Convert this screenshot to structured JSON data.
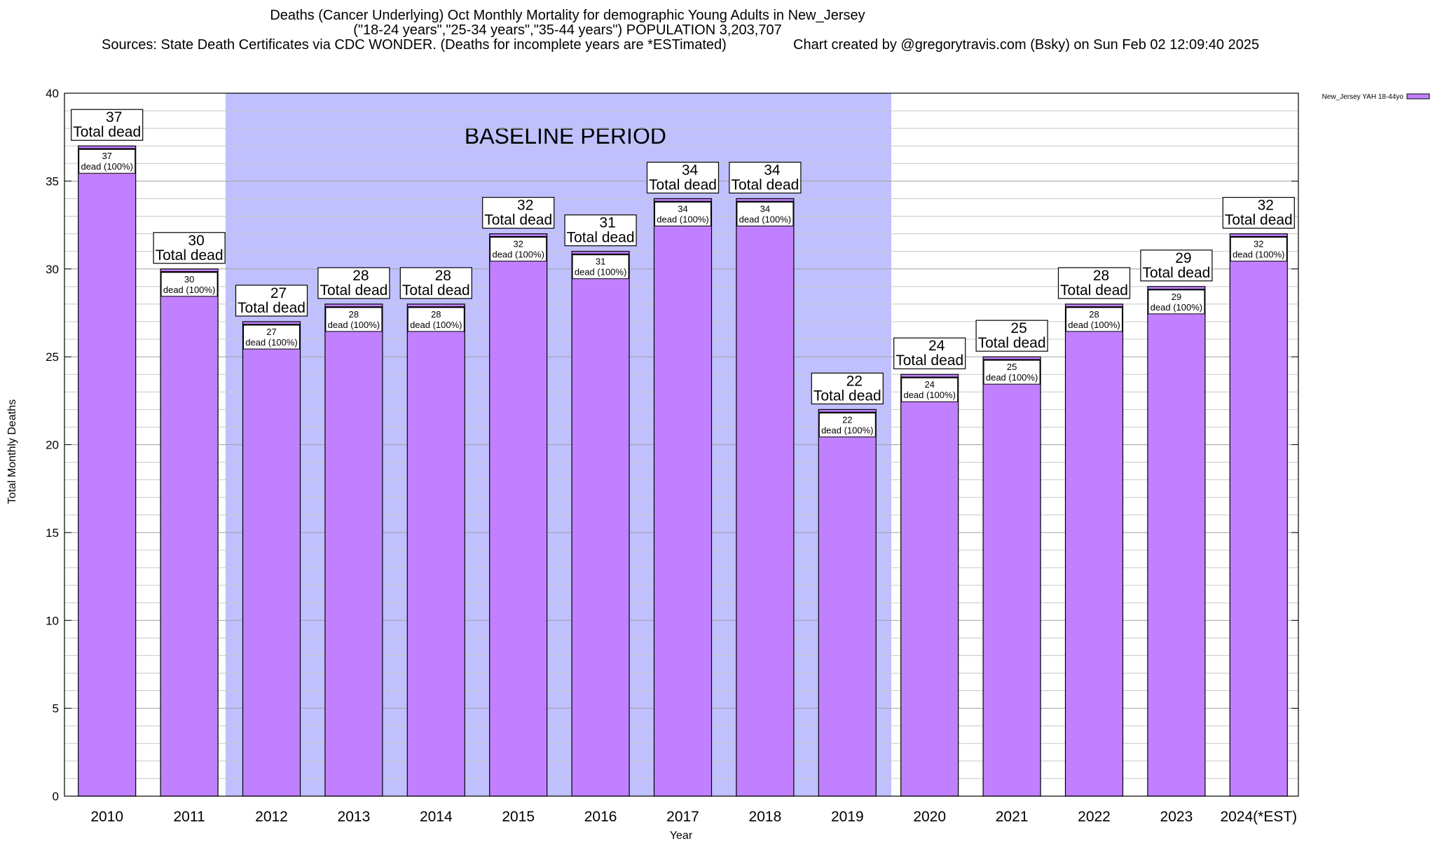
{
  "title": {
    "line1": "Deaths (Cancer Underlying) Oct Monthly Mortality for demographic Young Adults in New_Jersey",
    "line2": "(\"18-24 years\",\"25-34 years\",\"35-44 years\") POPULATION 3,203,707",
    "sources": "Sources: State Death Certificates via CDC WONDER. (Deaths for incomplete years are *ESTimated)",
    "credit": "Chart created by @gregorytravis.com (Bsky) on Sun Feb 02 12:09:40 2025"
  },
  "legend": {
    "label": "New_Jersey YAH 18-44yo"
  },
  "baseline": {
    "label": "BASELINE PERIOD",
    "start": "2012",
    "end": "2019"
  },
  "colors": {
    "bar": "#c080ff",
    "baseline": "#c0c0ff",
    "grid": "#c8c8c8"
  },
  "chart_data": {
    "type": "bar",
    "title": "Deaths (Cancer Underlying) Oct Monthly Mortality for demographic Young Adults in New_Jersey",
    "xlabel": "Year",
    "ylabel": "Total Monthly Deaths",
    "ylim": [
      0,
      40
    ],
    "yticks": [
      0,
      5,
      10,
      15,
      20,
      25,
      30,
      35,
      40
    ],
    "grid": true,
    "legend_position": "top-right",
    "categories": [
      "2010",
      "2011",
      "2012",
      "2013",
      "2014",
      "2015",
      "2016",
      "2017",
      "2018",
      "2019",
      "2020",
      "2021",
      "2022",
      "2023",
      "2024(*EST)"
    ],
    "series": [
      {
        "name": "New_Jersey YAH 18-44yo",
        "values": [
          37,
          30,
          27,
          28,
          28,
          32,
          31,
          34,
          34,
          22,
          24,
          25,
          28,
          29,
          32
        ]
      }
    ],
    "label_total": "Total dead",
    "label_pct": "dead (100%)"
  }
}
